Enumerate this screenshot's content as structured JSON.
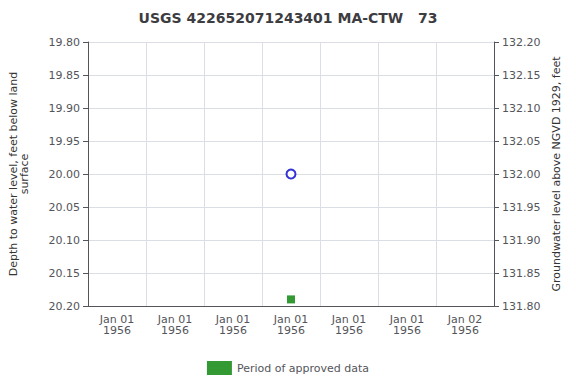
{
  "chart_data": {
    "type": "scatter",
    "title": "USGS 422652071243401 MA-CTW   73",
    "ylabel": "Depth to water level, feet below land\nsurface",
    "y2label": "Groundwater level above NGVD 1929, feet",
    "categories": [
      "Jan 01\n1956",
      "Jan 01\n1956",
      "Jan 01\n1956",
      "Jan 01\n1956",
      "Jan 01\n1956",
      "Jan 01\n1956",
      "Jan 02\n1956"
    ],
    "series": [
      {
        "color": "#0000cc",
        "marker": "hollow_circle",
        "values": [
          null,
          null,
          null,
          20.0,
          null,
          null,
          null
        ]
      },
      {
        "name": "Period of approved data",
        "color": "#008000",
        "marker": "square",
        "values": [
          null,
          null,
          null,
          20.19,
          null,
          null,
          null
        ]
      }
    ],
    "ylim": [
      20.2,
      19.8
    ],
    "yticks": [
      {
        "value": 19.8,
        "label": "19.80"
      },
      19.85,
      {
        "value": 19.9,
        "label": "19.90"
      },
      19.95,
      {
        "value": 20.0,
        "label": "20.00"
      },
      20.05,
      {
        "value": 20.1,
        "label": "20.10"
      },
      20.15,
      {
        "value": 20.2,
        "label": "20.20"
      }
    ],
    "y2lim": [
      131.8,
      132.2
    ],
    "y2ticks": [
      {
        "value": 132.2,
        "label": "132.20"
      },
      132.15,
      {
        "value": 132.1,
        "label": "132.10"
      },
      132.05,
      {
        "value": 132.0,
        "label": "132.00"
      },
      131.95,
      {
        "value": 131.9,
        "label": "131.90"
      },
      131.85,
      {
        "value": 131.8,
        "label": "131.80"
      }
    ],
    "grid": true,
    "legend": "bottom"
  }
}
